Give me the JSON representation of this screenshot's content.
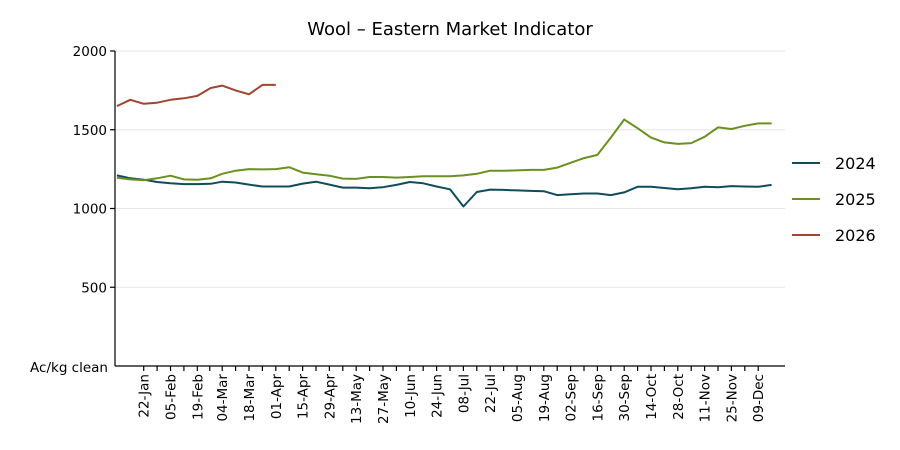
{
  "chart_data": {
    "type": "line",
    "title": "Wool – Eastern Market Indicator",
    "ylabel": "Ac/kg clean",
    "xlabel": "",
    "ylim": [
      0,
      2000
    ],
    "yticks": [
      500,
      1000,
      1500,
      2000
    ],
    "grid": true,
    "legend_position": "right",
    "x_tick_labels": [
      "22-Jan",
      "05-Feb",
      "19-Feb",
      "04-Mar",
      "18-Mar",
      "01-Apr",
      "15-Apr",
      "29-Apr",
      "13-May",
      "27-May",
      "10-Jun",
      "24-Jun",
      "08-Jul",
      "22-Jul",
      "05-Aug",
      "19-Aug",
      "02-Sep",
      "16-Sep",
      "30-Sep",
      "14-Oct",
      "28-Oct",
      "11-Nov",
      "25-Nov",
      "09-Dec"
    ],
    "series": [
      {
        "name": "2024",
        "color": "#0f4c5c",
        "x": [
          "08-Jan",
          "15-Jan",
          "22-Jan",
          "29-Jan",
          "05-Feb",
          "12-Feb",
          "19-Feb",
          "26-Feb",
          "04-Mar",
          "11-Mar",
          "18-Mar",
          "25-Mar",
          "01-Apr",
          "08-Apr",
          "15-Apr",
          "22-Apr",
          "29-Apr",
          "06-May",
          "13-May",
          "20-May",
          "27-May",
          "03-Jun",
          "10-Jun",
          "17-Jun",
          "24-Jun",
          "01-Jul",
          "08-Jul",
          "15-Jul",
          "22-Jul",
          "29-Jul",
          "05-Aug",
          "12-Aug",
          "19-Aug",
          "26-Aug",
          "02-Sep",
          "09-Sep",
          "16-Sep",
          "23-Sep",
          "30-Sep",
          "07-Oct",
          "14-Oct",
          "21-Oct",
          "28-Oct",
          "04-Nov",
          "11-Nov",
          "18-Nov",
          "25-Nov",
          "02-Dec",
          "09-Dec",
          "16-Dec"
        ],
        "values": [
          1210,
          1192,
          1183,
          1168,
          1160,
          1155,
          1155,
          1157,
          1170,
          1165,
          1152,
          1140,
          1140,
          1140,
          1158,
          1170,
          1152,
          1133,
          1133,
          1128,
          1135,
          1150,
          1168,
          1160,
          1140,
          1122,
          1013,
          1105,
          1120,
          1118,
          1115,
          1112,
          1110,
          1085,
          1090,
          1095,
          1095,
          1085,
          1102,
          1138,
          1138,
          1130,
          1122,
          1128,
          1138,
          1135,
          1142,
          1140,
          1138,
          1150
        ]
      },
      {
        "name": "2025",
        "color": "#6b9020",
        "x": [
          "08-Jan",
          "15-Jan",
          "22-Jan",
          "29-Jan",
          "05-Feb",
          "12-Feb",
          "19-Feb",
          "26-Feb",
          "04-Mar",
          "11-Mar",
          "18-Mar",
          "25-Mar",
          "01-Apr",
          "08-Apr",
          "15-Apr",
          "22-Apr",
          "29-Apr",
          "06-May",
          "13-May",
          "20-May",
          "27-May",
          "03-Jun",
          "10-Jun",
          "17-Jun",
          "24-Jun",
          "01-Jul",
          "08-Jul",
          "15-Jul",
          "22-Jul",
          "29-Jul",
          "05-Aug",
          "12-Aug",
          "19-Aug",
          "26-Aug",
          "02-Sep",
          "09-Sep",
          "16-Sep",
          "23-Sep",
          "30-Sep",
          "07-Oct",
          "14-Oct",
          "21-Oct",
          "28-Oct",
          "04-Nov",
          "11-Nov",
          "18-Nov",
          "25-Nov",
          "02-Dec",
          "09-Dec",
          "16-Dec"
        ],
        "values": [
          1195,
          1185,
          1180,
          1192,
          1208,
          1185,
          1182,
          1192,
          1220,
          1240,
          1250,
          1248,
          1250,
          1262,
          1228,
          1218,
          1208,
          1190,
          1188,
          1200,
          1200,
          1196,
          1200,
          1205,
          1205,
          1205,
          1210,
          1220,
          1240,
          1240,
          1242,
          1245,
          1245,
          1260,
          1290,
          1320,
          1340,
          1450,
          1565,
          1510,
          1450,
          1420,
          1410,
          1415,
          1455,
          1515,
          1505,
          1525,
          1540,
          1540
        ]
      },
      {
        "name": "2026",
        "color": "#a0452e",
        "x": [
          "08-Jan",
          "15-Jan",
          "22-Jan",
          "29-Jan",
          "05-Feb",
          "12-Feb",
          "19-Feb",
          "26-Feb",
          "04-Mar",
          "11-Mar",
          "18-Mar",
          "25-Mar",
          "01-Apr"
        ],
        "values": [
          1650,
          1690,
          1665,
          1672,
          1690,
          1700,
          1715,
          1765,
          1780,
          1750,
          1725,
          1785,
          1785
        ]
      }
    ]
  }
}
